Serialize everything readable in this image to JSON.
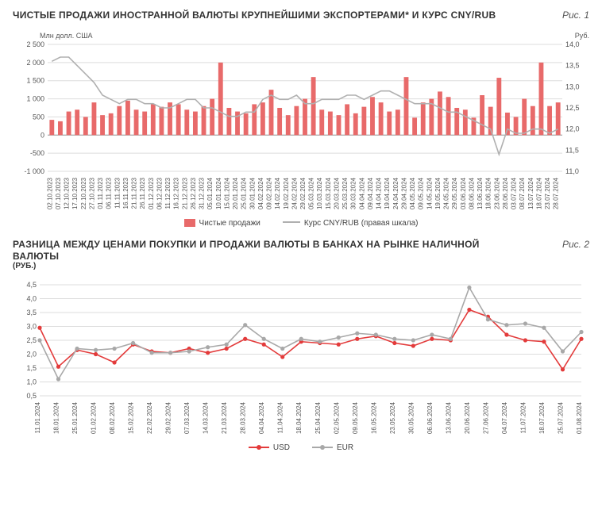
{
  "chart1": {
    "title": "ЧИСТЫЕ ПРОДАЖИ ИНОСТРАННОЙ ВАЛЮТЫ КРУПНЕЙШИМИ ЭКСПОРТЕРАМИ* И КУРС CNY/RUB",
    "fig_label": "Рис. 1",
    "y_left_title": "Млн долл. США",
    "y_right_title": "Руб.",
    "type": "bar+line",
    "y_left": {
      "min": -1000,
      "max": 2500,
      "step": 500
    },
    "y_right": {
      "min": 11.0,
      "max": 14.0,
      "step": 0.5
    },
    "bar_color": "#e86a6a",
    "line_color": "#b0b0b0",
    "grid_color": "#dddddd",
    "background": "#ffffff",
    "categories": [
      "02.10.2023",
      "07.10.2023",
      "12.10.2023",
      "17.10.2023",
      "22.10.2023",
      "27.10.2023",
      "01.11.2023",
      "06.11.2023",
      "11.11.2023",
      "16.11.2023",
      "21.11.2023",
      "26.11.2023",
      "01.12.2023",
      "06.12.2023",
      "11.12.2023",
      "16.12.2023",
      "21.12.2023",
      "26.12.2023",
      "31.12.2023",
      "05.01.2024",
      "10.01.2024",
      "15.01.2024",
      "20.01.2024",
      "25.01.2024",
      "30.01.2024",
      "04.02.2024",
      "09.02.2024",
      "14.02.2024",
      "19.02.2024",
      "24.02.2024",
      "29.02.2024",
      "05.03.2024",
      "10.03.2024",
      "15.03.2024",
      "20.03.2024",
      "25.03.2024",
      "30.03.2024",
      "04.04.2024",
      "09.04.2024",
      "14.04.2024",
      "19.04.2024",
      "24.04.2024",
      "29.04.2024",
      "04.05.2024",
      "09.05.2024",
      "14.05.2024",
      "19.05.2024",
      "24.05.2024",
      "29.05.2024",
      "03.06.2024",
      "08.06.2024",
      "13.06.2024",
      "18.06.2024",
      "23.06.2024",
      "28.06.2024",
      "03.07.2024",
      "08.07.2024",
      "13.07.2024",
      "18.07.2024",
      "23.07.2024",
      "28.07.2024"
    ],
    "bars": [
      420,
      380,
      650,
      700,
      500,
      900,
      550,
      600,
      800,
      950,
      700,
      650,
      850,
      780,
      900,
      850,
      700,
      650,
      800,
      1000,
      2000,
      750,
      650,
      600,
      850,
      900,
      1250,
      750,
      550,
      800,
      1000,
      1600,
      700,
      650,
      550,
      850,
      600,
      780,
      1050,
      900,
      650,
      700,
      1600,
      480,
      900,
      1000,
      1200,
      1050,
      750,
      700,
      480,
      1100,
      780,
      1580,
      620,
      500,
      1000,
      800,
      2000,
      800,
      900
    ],
    "line": [
      13.6,
      13.7,
      13.7,
      13.5,
      13.3,
      13.1,
      12.8,
      12.7,
      12.6,
      12.7,
      12.7,
      12.6,
      12.6,
      12.5,
      12.5,
      12.6,
      12.7,
      12.7,
      12.5,
      12.5,
      12.4,
      12.3,
      12.3,
      12.4,
      12.4,
      12.7,
      12.8,
      12.7,
      12.7,
      12.8,
      12.6,
      12.6,
      12.7,
      12.7,
      12.7,
      12.8,
      12.8,
      12.7,
      12.8,
      12.9,
      12.9,
      12.8,
      12.7,
      12.6,
      12.6,
      12.6,
      12.5,
      12.4,
      12.4,
      12.3,
      12.2,
      12.1,
      12.0,
      11.4,
      12.0,
      11.9,
      11.9,
      12.0,
      12.0,
      11.9,
      12.0
    ],
    "legend": {
      "bars": "Чистые продажи",
      "line": "Курс CNY/RUB (правая шкала)"
    },
    "title_fontsize": 12,
    "tick_fontsize": 8
  },
  "chart2": {
    "title": "РАЗНИЦА МЕЖДУ ЦЕНАМИ ПОКУПКИ И ПРОДАЖИ ВАЛЮТЫ В БАНКАХ НА РЫНКЕ НАЛИЧНОЙ ВАЛЮТЫ",
    "subtitle": "(РУБ.)",
    "fig_label": "Рис. 2",
    "type": "line",
    "y": {
      "min": 0.5,
      "max": 4.5,
      "step": 0.5
    },
    "grid_color": "#dddddd",
    "background": "#ffffff",
    "categories": [
      "11.01.2024",
      "18.01.2024",
      "25.01.2024",
      "01.02.2024",
      "08.02.2024",
      "15.02.2024",
      "22.02.2024",
      "29.02.2024",
      "07.03.2024",
      "14.03.2024",
      "21.03.2024",
      "28.03.2024",
      "04.04.2024",
      "11.04.2024",
      "18.04.2024",
      "25.04.2024",
      "02.05.2024",
      "09.05.2024",
      "16.05.2024",
      "23.05.2024",
      "30.05.2024",
      "06.06.2024",
      "13.06.2024",
      "20.06.2024",
      "27.06.2024",
      "04.07.2024",
      "11.07.2024",
      "18.07.2024",
      "25.07.2024",
      "01.08.2024"
    ],
    "series": [
      {
        "name": "USD",
        "color": "#e33b3b",
        "values": [
          2.95,
          1.55,
          2.15,
          2.0,
          1.7,
          2.35,
          2.1,
          2.05,
          2.2,
          2.05,
          2.2,
          2.55,
          2.35,
          1.9,
          2.45,
          2.4,
          2.35,
          2.55,
          2.65,
          2.4,
          2.3,
          2.55,
          2.5,
          3.6,
          3.35,
          2.7,
          2.5,
          2.45,
          1.45,
          2.55
        ]
      },
      {
        "name": "EUR",
        "color": "#a8a8a8",
        "values": [
          2.5,
          1.1,
          2.2,
          2.15,
          2.2,
          2.4,
          2.05,
          2.05,
          2.1,
          2.25,
          2.35,
          3.05,
          2.55,
          2.2,
          2.55,
          2.45,
          2.6,
          2.75,
          2.7,
          2.55,
          2.5,
          2.7,
          2.55,
          4.4,
          3.25,
          3.05,
          3.1,
          2.95,
          2.1,
          2.8
        ]
      }
    ],
    "legend": {
      "usd": "USD",
      "eur": "EUR"
    },
    "marker_radius": 2.6,
    "line_width": 1.6,
    "title_fontsize": 12
  }
}
